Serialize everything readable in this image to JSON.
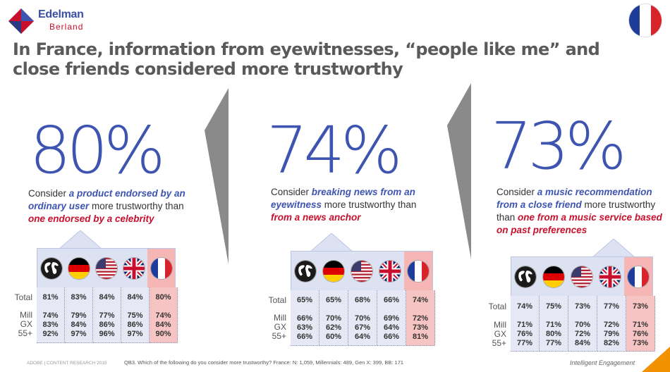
{
  "brand": {
    "name": "Edelman",
    "sub": "Berland",
    "colors": {
      "blue": "#3d54b1",
      "red": "#c8102e"
    }
  },
  "title": "In France, information from eyewitnesses, “people like me” and close friends considered more trustworthy",
  "flags": [
    "globe-icon",
    "germany-flag-icon",
    "usa-flag-icon",
    "uk-flag-icon",
    "france-flag-icon"
  ],
  "panels": [
    {
      "big": "80%",
      "desc_a": "Consider ",
      "desc_hl1": "a product endorsed by an ordinary user",
      "desc_b": " more trustworthy than ",
      "desc_hl2": "one endorsed by a celebrity",
      "total_label": "Total",
      "total": [
        "81%",
        "83%",
        "84%",
        "84%",
        "80%"
      ],
      "seg_labels": [
        "Mill",
        "GX",
        "55+"
      ],
      "segments": [
        [
          "74%",
          "83%",
          "92%"
        ],
        [
          "79%",
          "84%",
          "97%"
        ],
        [
          "77%",
          "86%",
          "96%"
        ],
        [
          "75%",
          "86%",
          "97%"
        ],
        [
          "74%",
          "84%",
          "90%"
        ]
      ]
    },
    {
      "big": "74%",
      "desc_a": "Consider ",
      "desc_hl1": "breaking news from an eyewitness",
      "desc_b": " more trustworthy than ",
      "desc_hl2": "from a news anchor",
      "total_label": "Total",
      "total": [
        "65%",
        "65%",
        "68%",
        "66%",
        "74%"
      ],
      "seg_labels": [
        "Mill",
        "GX",
        "55+"
      ],
      "segments": [
        [
          "66%",
          "63%",
          "66%"
        ],
        [
          "70%",
          "62%",
          "60%"
        ],
        [
          "70%",
          "67%",
          "64%"
        ],
        [
          "69%",
          "64%",
          "66%"
        ],
        [
          "72%",
          "73%",
          "81%"
        ]
      ]
    },
    {
      "big": "73%",
      "desc_a": "Consider ",
      "desc_hl1": "a music recommendation from a close friend",
      "desc_b": " more trustworthy than ",
      "desc_hl2": "one from a music service based on past preferences",
      "total_label": "Total",
      "total": [
        "74%",
        "75%",
        "73%",
        "77%",
        "73%"
      ],
      "seg_labels": [
        "Mill",
        "GX",
        "55+"
      ],
      "segments": [
        [
          "71%",
          "76%",
          "77%"
        ],
        [
          "71%",
          "80%",
          "77%"
        ],
        [
          "70%",
          "72%",
          "84%"
        ],
        [
          "72%",
          "79%",
          "82%"
        ],
        [
          "71%",
          "76%",
          "73%"
        ]
      ]
    }
  ],
  "footer": {
    "left": "ADOBE | CONTENT RESEARCH 2015",
    "middle": "QB3. Which of the following do you consider more trustworthy? France: N: 1,059, Millennials: 489, Gen X: 399, BB: 171",
    "right": "Intelligent Engagement"
  }
}
